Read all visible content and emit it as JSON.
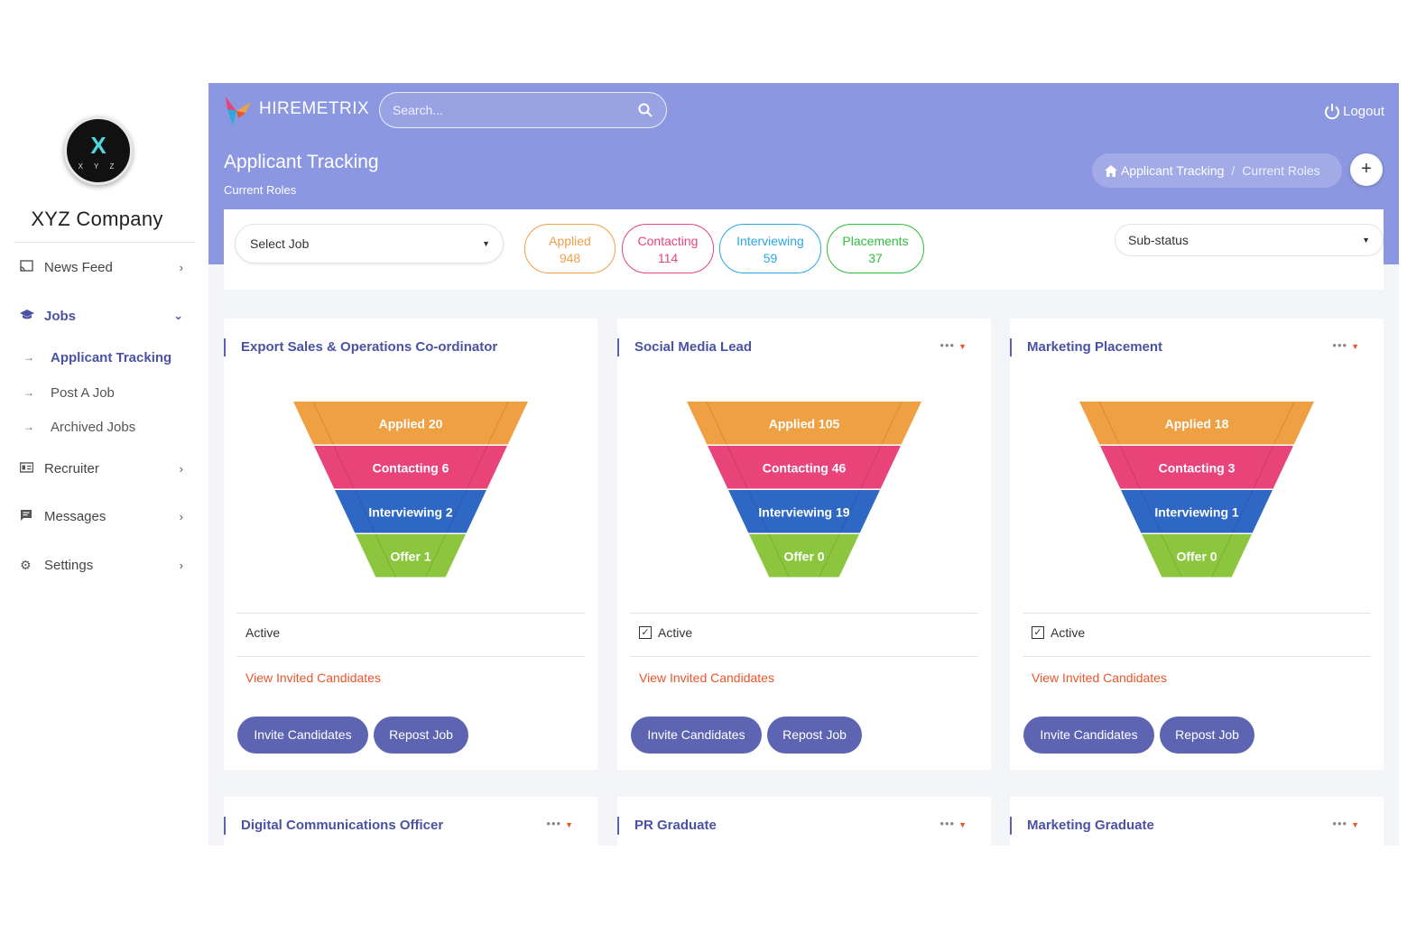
{
  "company": {
    "logo_letter": "X",
    "logo_sub": "X Y Z",
    "name": "XYZ Company"
  },
  "sidebar": {
    "items": [
      {
        "label": "News Feed",
        "icon": "cast-icon"
      },
      {
        "label": "Jobs",
        "icon": "graduation-cap-icon"
      },
      {
        "label": "Recruiter",
        "icon": "id-card-icon"
      },
      {
        "label": "Messages",
        "icon": "message-icon"
      },
      {
        "label": "Settings",
        "icon": "gear-icon"
      }
    ],
    "jobs_sub": [
      {
        "label": "Applicant Tracking"
      },
      {
        "label": "Post A Job"
      },
      {
        "label": "Archived Jobs"
      }
    ]
  },
  "topbar": {
    "brand": "HIREMETRIX",
    "search_placeholder": "Search...",
    "logout": "Logout"
  },
  "header": {
    "title": "Applicant Tracking",
    "subtitle": "Current Roles",
    "breadcrumb": [
      "Applicant Tracking",
      "Current Roles"
    ],
    "add_label": "+"
  },
  "filters": {
    "select_job": "Select Job",
    "substatus": "Sub-status",
    "pills": [
      {
        "label": "Applied",
        "count": "948",
        "color": "#f0a04b"
      },
      {
        "label": "Contacting",
        "count": "114",
        "color": "#e8457a"
      },
      {
        "label": "Interviewing",
        "count": "59",
        "color": "#2aa8e0"
      },
      {
        "label": "Placements",
        "count": "37",
        "color": "#2fbe3b"
      }
    ]
  },
  "funnel_colors": [
    "#eea043",
    "#e8447a",
    "#2e68c4",
    "#8cc63f"
  ],
  "jobs": [
    {
      "title": "Export Sales & Operations Co-ordinator",
      "menu": "•••",
      "funnel": [
        "Applied 20",
        "Contacting 6",
        "Interviewing 2",
        "Offer 1"
      ],
      "status": "Active",
      "checked": false,
      "link": "View Invited Candidates",
      "invite": "Invite Candidates",
      "repost": "Repost Job"
    },
    {
      "title": "Social Media Lead",
      "menu": "•••",
      "funnel": [
        "Applied 105",
        "Contacting 46",
        "Interviewing 19",
        "Offer 0"
      ],
      "status": "Active",
      "checked": true,
      "link": "View Invited Candidates",
      "invite": "Invite Candidates",
      "repost": "Repost Job"
    },
    {
      "title": "Marketing Placement",
      "menu": "•••",
      "funnel": [
        "Applied 18",
        "Contacting 3",
        "Interviewing 1",
        "Offer 0"
      ],
      "status": "Active",
      "checked": true,
      "link": "View Invited Candidates",
      "invite": "Invite Candidates",
      "repost": "Repost Job"
    }
  ],
  "more_jobs": [
    {
      "title": "Digital Communications Officer",
      "menu": "•••"
    },
    {
      "title": "PR Graduate",
      "menu": "•••"
    },
    {
      "title": "Marketing Graduate",
      "menu": "•••"
    }
  ]
}
